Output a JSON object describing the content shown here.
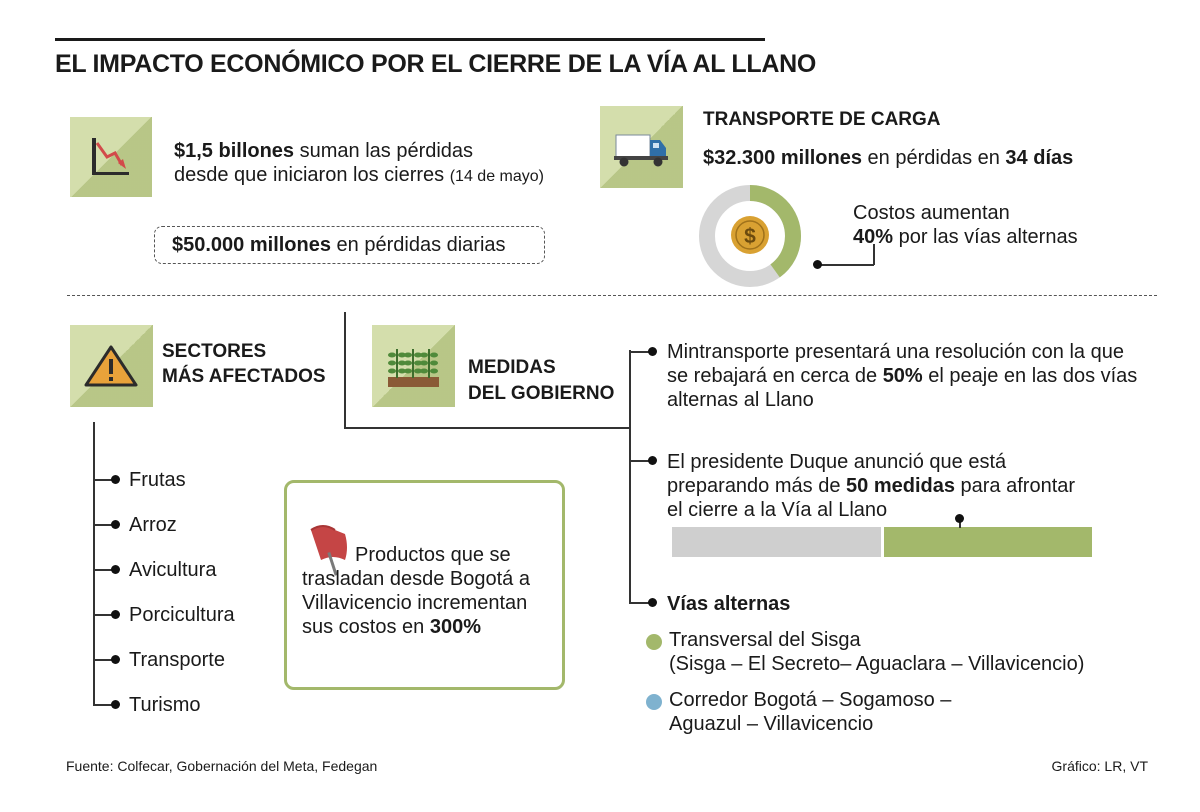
{
  "title": "EL IMPACTO ECONÓMICO POR EL CIERRE DE LA VÍA AL LLANO",
  "losses": {
    "amount": "$1,5 billones",
    "line1_rest": " suman las pérdidas",
    "line2": "desde que iniciaron los cierres",
    "date_note": "(14 de mayo)",
    "daily_amount": "$50.000 millones",
    "daily_rest": " en pérdidas diarias"
  },
  "transport": {
    "heading": "TRANSPORTE DE CARGA",
    "amount": "$32.300 millones",
    "mid": " en pérdidas en ",
    "days": "34 días",
    "costs_line1": "Costos aumentan",
    "costs_pct": "40%",
    "costs_rest": " por las vías alternas",
    "donut_fraction": 0.4,
    "colors": {
      "share": "#a3b86b",
      "rest": "#d6d6d6",
      "coin": "#d9a132"
    }
  },
  "sectors": {
    "heading_line1": "SECTORES",
    "heading_line2": "MÁS AFECTADOS",
    "items": [
      "Frutas",
      "Arroz",
      "Avicultura",
      "Porcicultura",
      "Transporte",
      "Turismo"
    ]
  },
  "products": {
    "line1": "Productos que se",
    "line2": "trasladan desde Bogotá a",
    "line3": "Villavicencio incrementan",
    "line4_pre": "sus costos en ",
    "line4_pct": "300%"
  },
  "government": {
    "heading_line1": "MEDIDAS",
    "heading_line2": "DEL GOBIERNO",
    "measure1": {
      "line1": "Mintransporte presentará una resolución con la que",
      "line2_pre": "se rebajará en cerca de ",
      "line2_pct": "50%",
      "line2_post": " el peaje en las dos vías",
      "line3": "alternas al Llano"
    },
    "measure2": {
      "line1": "El presidente Duque anunció que está",
      "line2_pre": "preparando más de ",
      "line2_bold": "50 medidas",
      "line2_post": " para afrontar",
      "line3": "el cierre a la Vía al Llano",
      "toll_reduction_fraction": 0.5
    },
    "routes_heading": "Vías alternas",
    "routes": [
      {
        "line1": "Transversal del Sisga",
        "line2": "(Sisga – El Secreto– Aguaclara – Villavicencio)",
        "color": "#a3b86b"
      },
      {
        "line1": "Corredor Bogotá – Sogamoso –",
        "line2": "Aguazul – Villavicencio",
        "color": "#7fb2cf"
      }
    ]
  },
  "footer": {
    "source": "Fuente: Colfecar, Gobernación del Meta, Fedegan",
    "credit": "Gráfico: LR, VT"
  },
  "icons": {
    "chart": "chart-down-icon",
    "truck": "truck-icon",
    "coin": "dollar-coin-icon",
    "warning": "warning-icon",
    "plants": "plants-icon",
    "flag": "flag-icon"
  }
}
